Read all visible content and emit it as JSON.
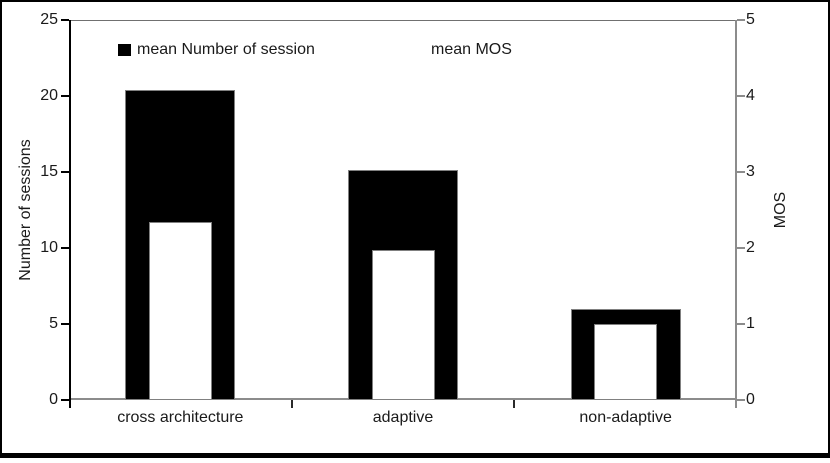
{
  "chart_data": {
    "type": "bar",
    "title": "",
    "categories": [
      "cross architecture",
      "adaptive",
      "non-adaptive"
    ],
    "series": [
      {
        "name": "mean Number of session",
        "axis": "left",
        "color": "#000000",
        "values": [
          20.4,
          15.1,
          6.0
        ]
      },
      {
        "name": "mean MOS",
        "axis": "right",
        "color": "#ffffff",
        "values": [
          2.34,
          1.98,
          1.0
        ]
      }
    ],
    "left_axis": {
      "label": "Number of sessions",
      "min": 0,
      "max": 25,
      "ticks": [
        0,
        5,
        10,
        15,
        20,
        25
      ]
    },
    "right_axis": {
      "label": "MOS",
      "min": 0,
      "max": 5,
      "ticks": [
        0,
        1,
        2,
        3,
        4,
        5
      ]
    },
    "legend_position": "top-inside",
    "grid": false,
    "layout_hint": "overlaid bars: black sessions bar behind, narrower white MOS bar in front, both baseline 0"
  },
  "colors": {
    "bar_sessions": "#000000",
    "bar_mos_fill": "#ffffff",
    "bar_border": "#808080",
    "left_axis": "#000000",
    "right_axis": "#8c8c8c",
    "figure_border": "#000000"
  }
}
